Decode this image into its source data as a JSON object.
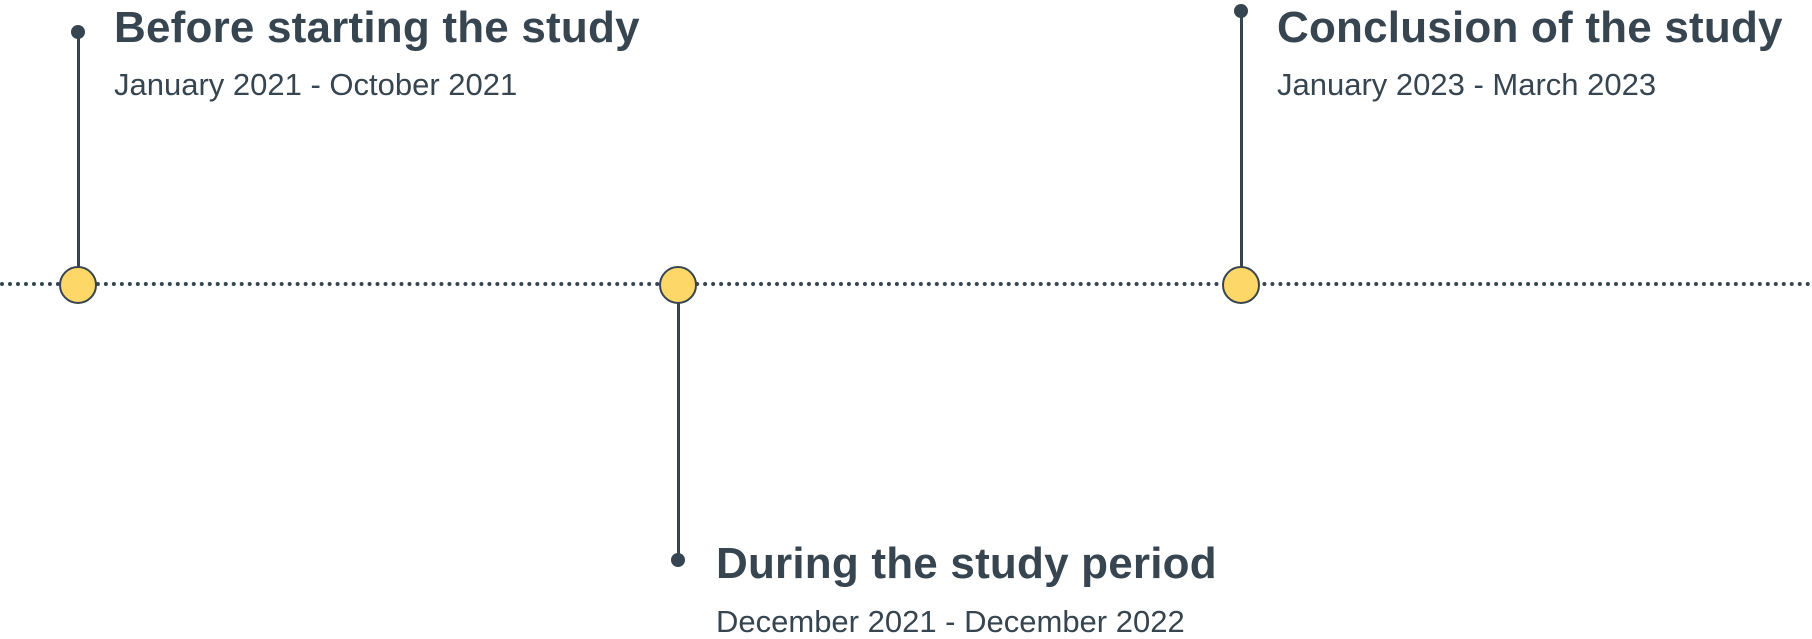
{
  "timeline": {
    "events": [
      {
        "title": "Before starting the study",
        "date_range": "January 2021 - October 2021"
      },
      {
        "title": "During the study period",
        "date_range": "December 2021 - December 2022"
      },
      {
        "title": "Conclusion of the study",
        "date_range": "January 2023 - March 2023"
      }
    ]
  },
  "colors": {
    "line": "#36454f",
    "node_fill": "#fdd868",
    "text": "#36454f"
  }
}
